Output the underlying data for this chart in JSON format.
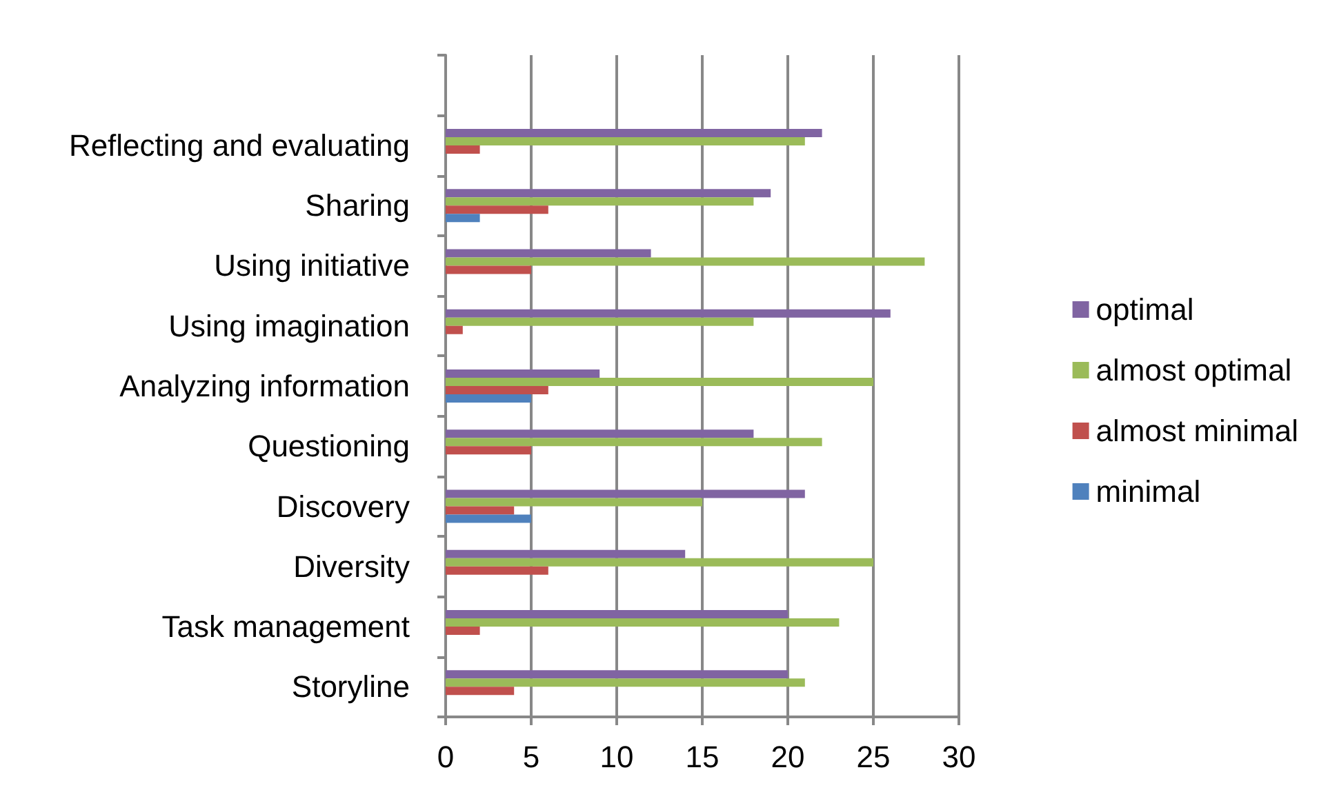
{
  "chart_data": {
    "type": "bar",
    "orientation": "horizontal",
    "categories": [
      null,
      "Reflecting and evaluating",
      "Sharing",
      "Using initiative",
      "Using imagination",
      "Analyzing information",
      "Questioning",
      "Discovery",
      "Diversity",
      "Task management",
      "Storyline"
    ],
    "series": [
      {
        "name": "optimal",
        "color": "#8064a2",
        "values": [
          null,
          22,
          19,
          12,
          26,
          9,
          18,
          21,
          14,
          20,
          20
        ]
      },
      {
        "name": "almost optimal",
        "color": "#9bbb59",
        "values": [
          null,
          21,
          18,
          28,
          18,
          25,
          22,
          15,
          25,
          23,
          21
        ]
      },
      {
        "name": "almost minimal",
        "color": "#c0504d",
        "values": [
          null,
          2,
          6,
          5,
          1,
          6,
          5,
          4,
          6,
          2,
          4
        ]
      },
      {
        "name": "minimal",
        "color": "#4f81bd",
        "values": [
          null,
          null,
          2,
          null,
          null,
          5,
          null,
          5,
          null,
          null,
          null
        ]
      }
    ],
    "xlim": [
      0,
      30
    ],
    "xticks": [
      0,
      5,
      10,
      15,
      20,
      25,
      30
    ],
    "grid": "x",
    "legend": "right"
  }
}
